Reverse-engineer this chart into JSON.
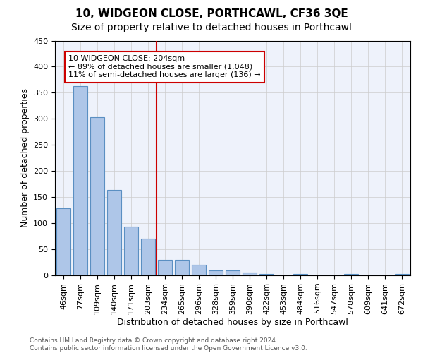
{
  "title": "10, WIDGEON CLOSE, PORTHCAWL, CF36 3QE",
  "subtitle": "Size of property relative to detached houses in Porthcawl",
  "xlabel": "Distribution of detached houses by size in Porthcawl",
  "ylabel": "Number of detached properties",
  "bar_values": [
    128,
    363,
    303,
    164,
    94,
    70,
    30,
    30,
    20,
    10,
    10,
    5,
    3,
    0,
    3,
    0,
    0,
    3,
    0,
    0,
    3
  ],
  "bar_labels": [
    "46sqm",
    "77sqm",
    "109sqm",
    "140sqm",
    "171sqm",
    "203sqm",
    "234sqm",
    "265sqm",
    "296sqm",
    "328sqm",
    "359sqm",
    "390sqm",
    "422sqm",
    "453sqm",
    "484sqm",
    "516sqm",
    "547sqm",
    "578sqm",
    "609sqm",
    "641sqm",
    "672sqm"
  ],
  "bar_color": "#aec6e8",
  "bar_edge_color": "#5a8fc2",
  "vline_x": 5.5,
  "vline_color": "#cc0000",
  "annotation_box_text": "10 WIDGEON CLOSE: 204sqm\n← 89% of detached houses are smaller (1,048)\n11% of semi-detached houses are larger (136) →",
  "annotation_box_color": "#cc0000",
  "ylim": [
    0,
    450
  ],
  "yticks": [
    0,
    50,
    100,
    150,
    200,
    250,
    300,
    350,
    400,
    450
  ],
  "background_color": "#eef2fb",
  "grid_color": "#cccccc",
  "footer_text": "Contains HM Land Registry data © Crown copyright and database right 2024.\nContains public sector information licensed under the Open Government Licence v3.0.",
  "title_fontsize": 11,
  "subtitle_fontsize": 10,
  "label_fontsize": 9,
  "tick_fontsize": 8
}
